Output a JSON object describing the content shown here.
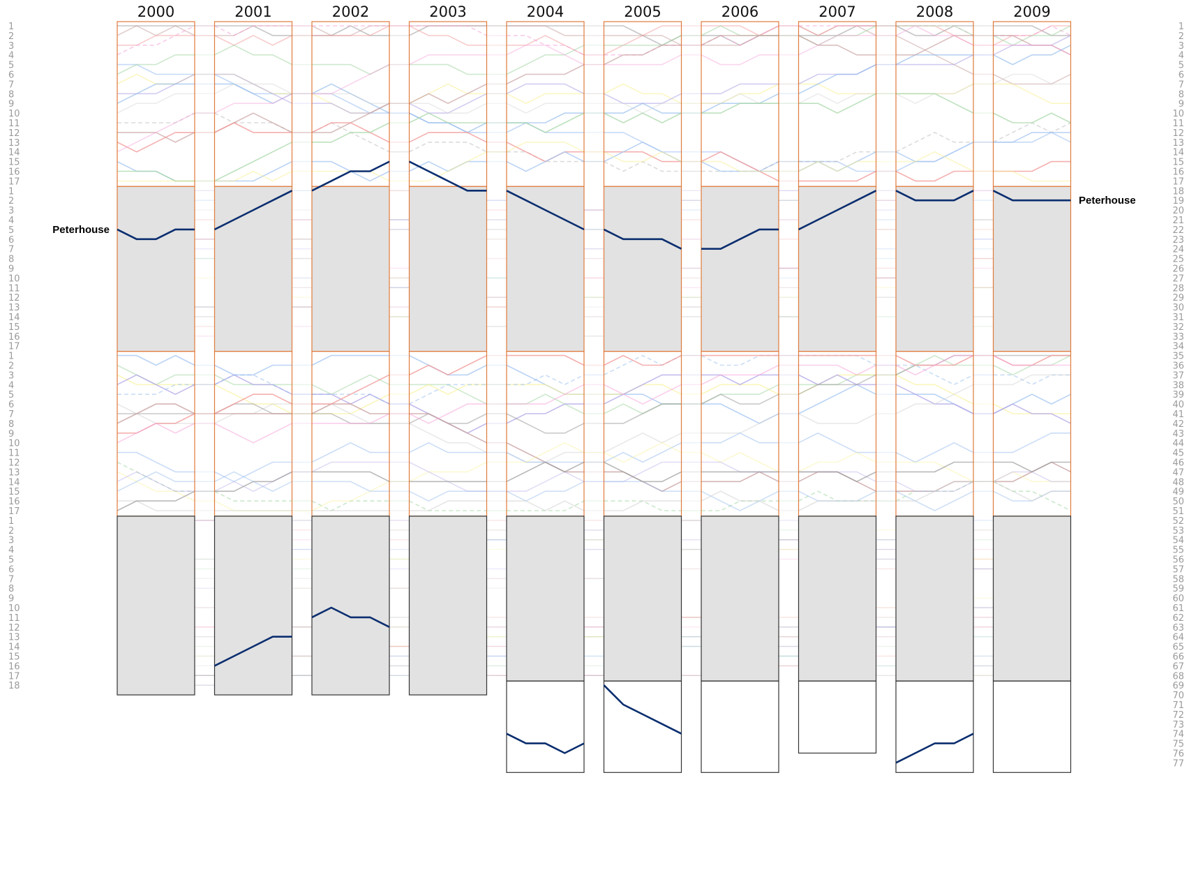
{
  "chart_data": {
    "type": "line",
    "title": "",
    "xlabel": "",
    "ylabel": "",
    "years": [
      "2000",
      "2001",
      "2002",
      "2003",
      "2004",
      "2005",
      "2006",
      "2007",
      "2008",
      "2009"
    ],
    "divisions_per_year": [
      4,
      4,
      4,
      4,
      5,
      5,
      5,
      5,
      5,
      5
    ],
    "crews_per_division": [
      17,
      17,
      17,
      18
    ],
    "last_division_crews": {
      "2004": 9,
      "2005": 9,
      "2006": 9,
      "2007": 7,
      "2008": 9,
      "2009": 9
    },
    "left_axis_division_positions": [
      [
        "1",
        "2",
        "3",
        "4",
        "5",
        "6",
        "7",
        "8",
        "9",
        "10",
        "11",
        "12",
        "13",
        "14",
        "15",
        "16",
        "17"
      ],
      [
        "1",
        "2",
        "3",
        "4",
        "5",
        "6",
        "7",
        "8",
        "9",
        "10",
        "11",
        "12",
        "13",
        "14",
        "15",
        "16",
        "17"
      ],
      [
        "1",
        "2",
        "3",
        "4",
        "5",
        "6",
        "7",
        "8",
        "9",
        "10",
        "11",
        "12",
        "13",
        "14",
        "15",
        "16",
        "17"
      ],
      [
        "1",
        "2",
        "3",
        "4",
        "5",
        "6",
        "7",
        "8",
        "9",
        "10",
        "11",
        "12",
        "13",
        "14",
        "15",
        "16",
        "17",
        "18"
      ]
    ],
    "right_axis_positions": [
      "1",
      "2",
      "3",
      "4",
      "5",
      "6",
      "7",
      "8",
      "9",
      "10",
      "11",
      "12",
      "13",
      "14",
      "15",
      "16",
      "17",
      "18",
      "19",
      "20",
      "21",
      "22",
      "23",
      "24",
      "25",
      "26",
      "27",
      "28",
      "29",
      "30",
      "31",
      "32",
      "33",
      "34",
      "35",
      "36",
      "37",
      "38",
      "39",
      "40",
      "41",
      "42",
      "43",
      "44",
      "45",
      "46",
      "47",
      "48",
      "49",
      "50",
      "51",
      "52",
      "53",
      "54",
      "55",
      "56",
      "57",
      "58",
      "59",
      "60",
      "61",
      "62",
      "63",
      "64",
      "65",
      "66",
      "67",
      "68",
      "69",
      "70",
      "71",
      "72",
      "73",
      "74",
      "75",
      "76",
      "77"
    ],
    "highlighted_series": [
      {
        "name": "Peterhouse",
        "label_left": "Peterhouse",
        "label_right": "Peterhouse",
        "color": "#0b2e6f",
        "men_1st_crew_positions": [
          {
            "year": "2000",
            "start": 22,
            "days": [
              23,
              23,
              22,
              22
            ]
          },
          {
            "year": "2001",
            "start": 22,
            "days": [
              21,
              20,
              19,
              18
            ]
          },
          {
            "year": "2002",
            "start": 18,
            "days": [
              17,
              16,
              16,
              15
            ]
          },
          {
            "year": "2003",
            "start": 15,
            "days": [
              16,
              17,
              18,
              18
            ]
          },
          {
            "year": "2004",
            "start": 18,
            "days": [
              19,
              20,
              21,
              22
            ]
          },
          {
            "year": "2005",
            "start": 22,
            "days": [
              23,
              23,
              23,
              24
            ]
          },
          {
            "year": "2006",
            "start": 24,
            "days": [
              24,
              23,
              22,
              22
            ]
          },
          {
            "year": "2007",
            "start": 22,
            "days": [
              21,
              20,
              19,
              18
            ]
          },
          {
            "year": "2008",
            "start": 18,
            "days": [
              19,
              19,
              19,
              18
            ]
          },
          {
            "year": "2009",
            "start": 18,
            "days": [
              19,
              19,
              19,
              19
            ]
          }
        ],
        "lower_crew_positions": [
          {
            "year": "2001",
            "start": 67,
            "days": [
              66,
              65,
              64,
              64
            ]
          },
          {
            "year": "2002",
            "start": 62,
            "days": [
              61,
              62,
              62,
              63
            ]
          },
          {
            "year": "2004",
            "start": 74,
            "days": [
              75,
              75,
              76,
              75
            ]
          },
          {
            "year": "2005",
            "start": 69,
            "days": [
              71,
              72,
              73,
              74
            ]
          },
          {
            "year": "2008",
            "start": 77,
            "days": [
              76,
              75,
              75,
              74
            ]
          }
        ]
      }
    ],
    "background_series_count": 76,
    "colors": {
      "frame_orange": "#e07a3a",
      "frame_dark": "#333333",
      "shade_fill": "#e2e2e2",
      "highlight": "#0b2e6f",
      "palette": [
        "#9a9a9a",
        "#c9a0a0",
        "#f29a9a",
        "#f5a3d9",
        "#a7c6f2",
        "#a8d8a8",
        "#f7ef8a",
        "#b4a8e8",
        "#8fb8ea",
        "#d0d0d0"
      ]
    },
    "grid": false,
    "legend": "none"
  }
}
